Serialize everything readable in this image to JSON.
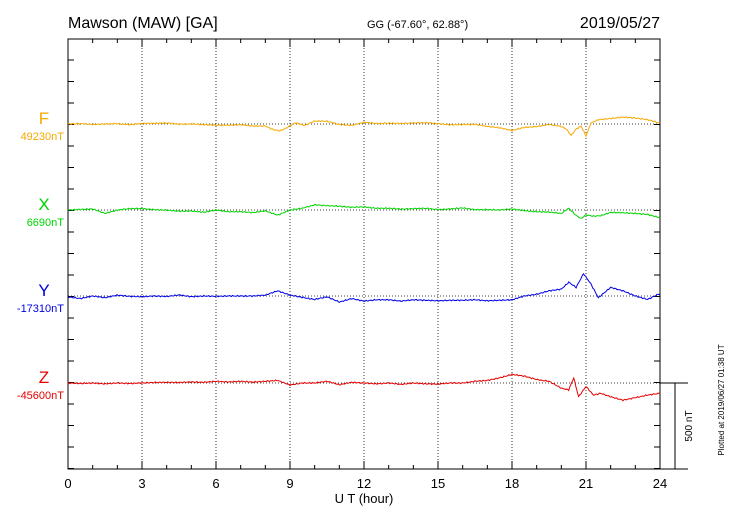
{
  "header": {
    "station": "Mawson (MAW)  [GA]",
    "coords": "GG (-67.60°,  62.88°)",
    "date": "2019/05/27"
  },
  "chart_data": {
    "type": "line",
    "xlabel": "U T (hour)",
    "xlim": [
      0,
      24
    ],
    "x_ticks": [
      "0",
      "3",
      "6",
      "9",
      "12",
      "15",
      "18",
      "21",
      "24"
    ],
    "scale_bar_label": "500 nT",
    "plotted_text": "Plotted at 2019/06/27 01:38 UT",
    "series": [
      {
        "name": "F",
        "baseline_label": "49230nT",
        "color": "#f5a800",
        "x": [
          0,
          0.5,
          1,
          1.5,
          2,
          2.5,
          3,
          3.5,
          4,
          4.5,
          5,
          5.5,
          6,
          6.5,
          7,
          7.5,
          8,
          8.3,
          8.6,
          8.9,
          9.2,
          9.6,
          10,
          10.5,
          11,
          11.5,
          12,
          12.5,
          13,
          13.5,
          14,
          14.5,
          15,
          15.5,
          16,
          16.5,
          17,
          17.5,
          18,
          18.5,
          19,
          19.5,
          20,
          20.2,
          20.4,
          20.6,
          20.8,
          21,
          21.2,
          21.5,
          22,
          22.5,
          23,
          23.5,
          24
        ],
        "y": [
          0,
          2,
          -3,
          0,
          2,
          -4,
          3,
          4,
          6,
          -1,
          0,
          -4,
          -7,
          -7,
          -4,
          -12,
          -12,
          -32,
          -40,
          -20,
          7,
          -8,
          17,
          16,
          -3,
          -8,
          10,
          3,
          5,
          3,
          6,
          8,
          2,
          -5,
          -3,
          -2,
          -14,
          -22,
          -38,
          -20,
          -15,
          -3,
          -14,
          -30,
          -66,
          -30,
          -12,
          -70,
          5,
          25,
          32,
          40,
          35,
          25,
          5
        ]
      },
      {
        "name": "X",
        "baseline_label": "6690nT",
        "color": "#00d400",
        "x": [
          0,
          0.5,
          1,
          1.5,
          2,
          2.5,
          3,
          3.5,
          4,
          4.5,
          5,
          5.5,
          6,
          6.5,
          7,
          7.5,
          8,
          8.5,
          9,
          9.5,
          10,
          10.5,
          11,
          11.5,
          12,
          12.5,
          13,
          13.5,
          14,
          14.5,
          15,
          15.5,
          16,
          16.5,
          17,
          17.5,
          18,
          18.5,
          19,
          19.5,
          20,
          20.3,
          20.6,
          20.8,
          21,
          21.3,
          21.6,
          22,
          22.5,
          23,
          23.5,
          24
        ],
        "y": [
          0,
          3,
          6,
          -20,
          0,
          8,
          8,
          2,
          -1,
          -7,
          -6,
          -13,
          0,
          -10,
          -10,
          -15,
          -5,
          -30,
          0,
          10,
          30,
          25,
          22,
          16,
          18,
          10,
          10,
          5,
          8,
          10,
          2,
          6,
          12,
          2,
          2,
          0,
          6,
          -4,
          -10,
          -12,
          -20,
          10,
          -32,
          -50,
          -28,
          -36,
          -33,
          -14,
          -16,
          -20,
          -26,
          -45
        ]
      },
      {
        "name": "Y",
        "baseline_label": "-17310nT",
        "color": "#0000e6",
        "x": [
          0,
          0.5,
          1,
          1.5,
          2,
          2.5,
          3,
          3.5,
          4,
          4.5,
          5,
          5.5,
          6,
          6.5,
          7,
          7.5,
          8,
          8.5,
          9,
          9.5,
          10,
          10.5,
          11,
          11.5,
          12,
          12.5,
          13,
          13.5,
          14,
          14.5,
          15,
          15.5,
          16,
          16.5,
          17,
          17.5,
          18,
          18.5,
          19,
          19.5,
          20,
          20.3,
          20.6,
          20.9,
          21.2,
          21.5,
          22,
          22.5,
          23,
          23.5,
          24
        ],
        "y": [
          -5,
          -15,
          0,
          -10,
          5,
          -2,
          -4,
          0,
          -3,
          6,
          -4,
          0,
          -2,
          0,
          0,
          0,
          5,
          30,
          5,
          -8,
          -20,
          -5,
          -35,
          -15,
          -30,
          -22,
          -22,
          -30,
          -22,
          -25,
          -28,
          -25,
          -25,
          -22,
          -28,
          -25,
          -22,
          0,
          10,
          30,
          40,
          80,
          50,
          130,
          70,
          -10,
          50,
          30,
          0,
          -20,
          15
        ]
      },
      {
        "name": "Z",
        "baseline_label": "-45600nT",
        "color": "#e60000",
        "x": [
          0,
          0.5,
          1,
          1.5,
          2,
          2.5,
          3,
          3.5,
          4,
          4.5,
          5,
          5.5,
          6,
          6.5,
          7,
          7.5,
          8,
          8.5,
          9,
          9.5,
          10,
          10.5,
          11,
          11.5,
          12,
          12.5,
          13,
          13.5,
          14,
          14.5,
          15,
          15.5,
          16,
          16.5,
          17,
          17.5,
          18,
          18.5,
          19,
          19.5,
          20,
          20.3,
          20.5,
          20.7,
          21,
          21.3,
          21.6,
          22,
          22.5,
          23,
          23.5,
          24
        ],
        "y": [
          0,
          -3,
          0,
          -5,
          0,
          -3,
          0,
          3,
          4,
          3,
          6,
          4,
          10,
          6,
          10,
          5,
          10,
          15,
          -12,
          0,
          0,
          10,
          -10,
          4,
          0,
          -5,
          0,
          -8,
          0,
          -5,
          -6,
          0,
          0,
          10,
          15,
          30,
          50,
          40,
          20,
          10,
          -30,
          -40,
          30,
          -80,
          -20,
          -70,
          -60,
          -80,
          -100,
          -85,
          -70,
          -60
        ]
      }
    ]
  }
}
